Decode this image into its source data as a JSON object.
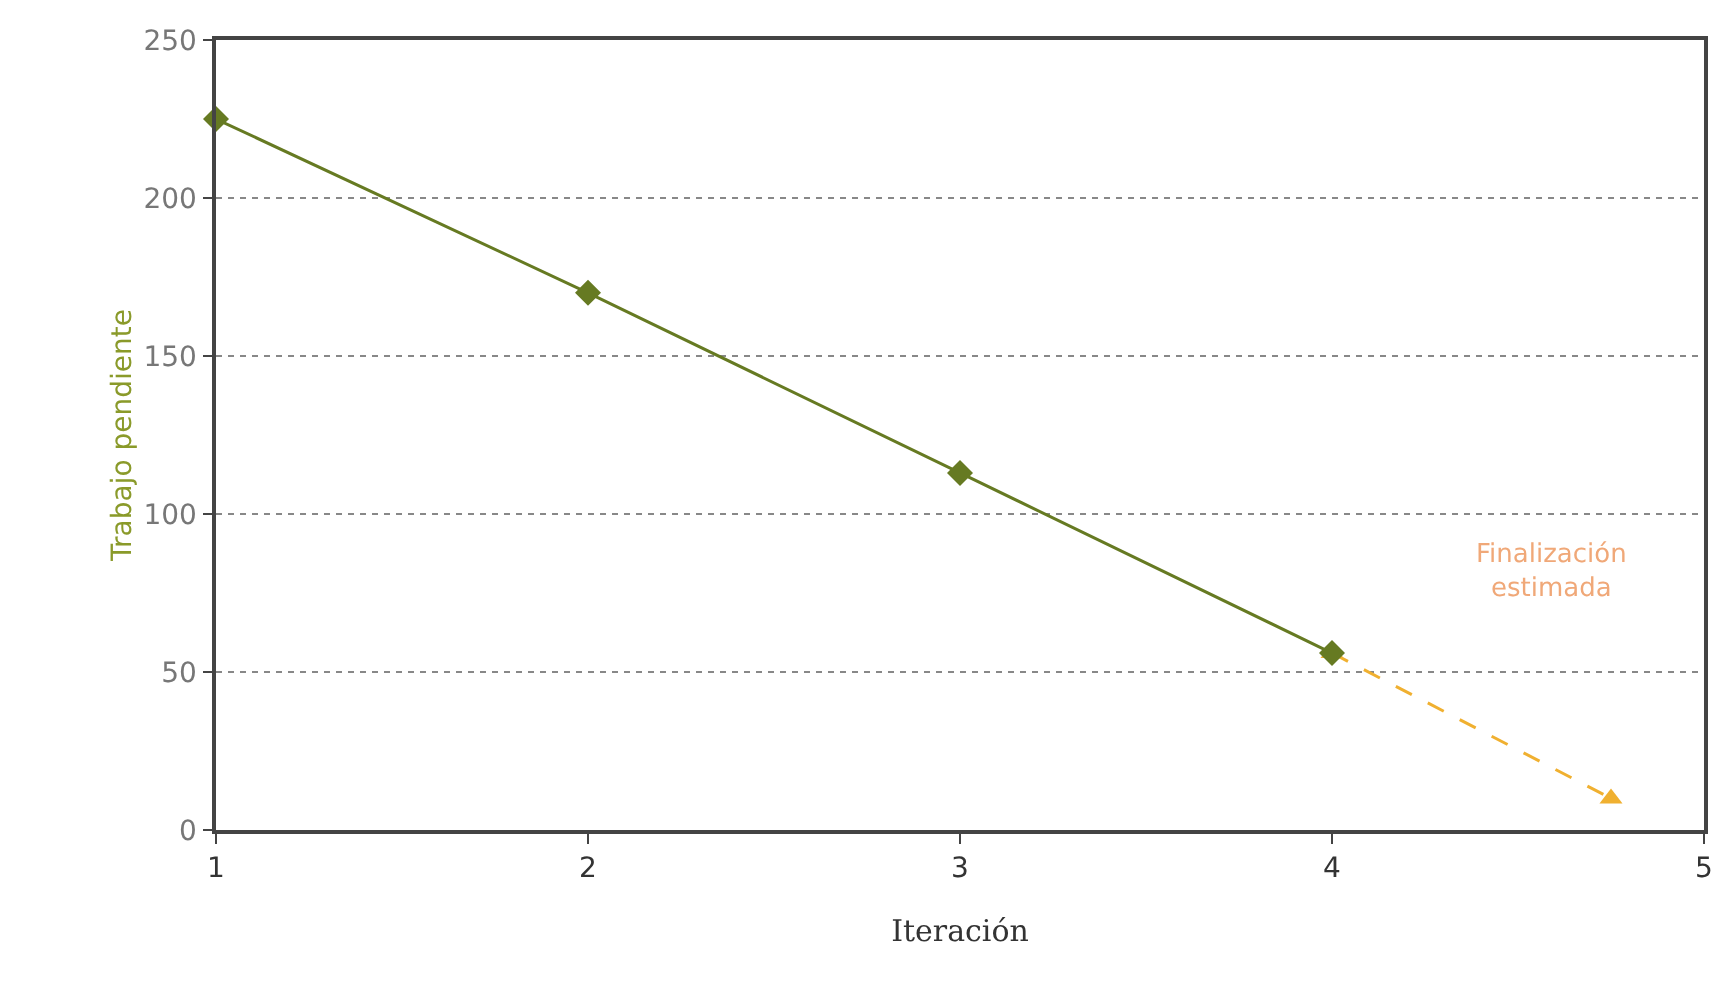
{
  "chart_data": {
    "type": "line",
    "xlabel": "Iteración",
    "ylabel": "Trabajo pendiente",
    "xlim": [
      1,
      5
    ],
    "xticks": [
      1,
      2,
      3,
      4,
      5
    ],
    "ylim": [
      0,
      250
    ],
    "yticks": [
      0,
      50,
      100,
      150,
      200,
      250
    ],
    "grid": "y",
    "series": [
      {
        "color": "#f0b030",
        "x": [
          4,
          4.75
        ],
        "values": [
          56,
          10
        ],
        "marker": "triangle",
        "line_style": "dashed"
      },
      {
        "color": "#667a22",
        "x": [
          1,
          2,
          3,
          4
        ],
        "values": [
          225,
          170,
          113,
          56
        ],
        "marker": "diamond",
        "line_style": "solid"
      }
    ],
    "annotations": [
      "Finalización estimada"
    ]
  }
}
